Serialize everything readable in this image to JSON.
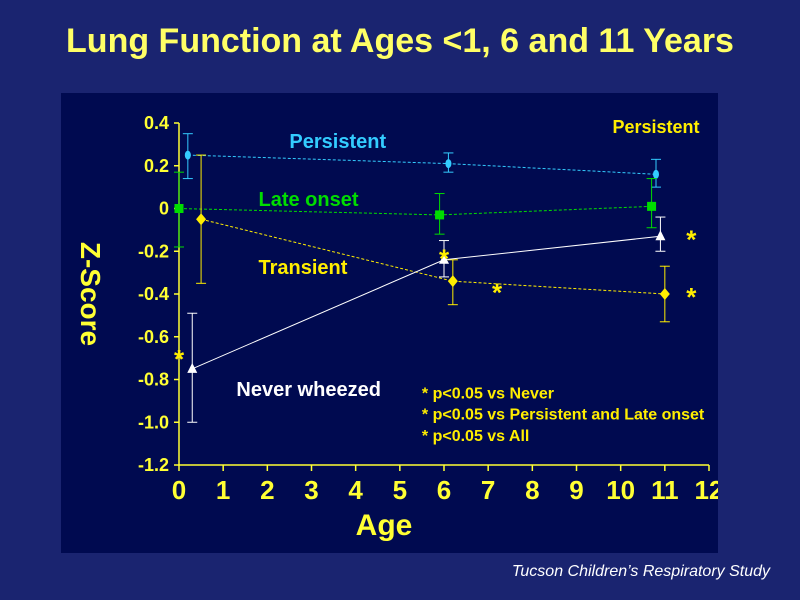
{
  "title": "Lung Function at Ages <1, 6 and 11 Years",
  "footer": "Tucson Children’s Respiratory Study",
  "chart_data": {
    "type": "line",
    "ylabel": "Z-Score",
    "xlabel": "Age",
    "xlim": [
      0,
      12
    ],
    "ylim": [
      -1.2,
      0.4
    ],
    "x_ticks": [
      0,
      1,
      2,
      3,
      4,
      5,
      6,
      7,
      8,
      9,
      10,
      11,
      12
    ],
    "x_tick_labels": [
      "0",
      "1",
      "2",
      "3",
      "4",
      "5",
      "6",
      "7",
      "8",
      "9",
      "10",
      "11",
      "12"
    ],
    "y_ticks": [
      0.4,
      0.2,
      0,
      -0.2,
      -0.4,
      -0.6,
      -0.8,
      -1.0,
      -1.2
    ],
    "y_tick_labels": [
      "0.4",
      "0.2",
      "0",
      "-0.2",
      "-0.4",
      "-0.6",
      "-0.8",
      "-1.0",
      "-1.2"
    ],
    "series": [
      {
        "name": "Persistent",
        "color": "#33ccff",
        "marker": "circle",
        "x": [
          0.2,
          6.1,
          10.8
        ],
        "y": [
          0.25,
          0.21,
          0.16
        ],
        "err_low": [
          0.14,
          0.17,
          0.1
        ],
        "err_high": [
          0.35,
          0.26,
          0.23
        ],
        "label_x": 2.5,
        "label_y": 0.32
      },
      {
        "name": "Late onset",
        "color": "#00dd00",
        "marker": "square",
        "x": [
          0,
          5.9,
          10.7
        ],
        "y": [
          0.0,
          -0.03,
          0.01
        ],
        "err_low": [
          -0.18,
          -0.12,
          -0.09
        ],
        "err_high": [
          0.17,
          0.07,
          0.14
        ],
        "label_x": 1.8,
        "label_y": 0.05
      },
      {
        "name": "Transient",
        "color": "#ffee00",
        "marker": "diamond",
        "x": [
          0.5,
          6.2,
          11.0
        ],
        "y": [
          -0.05,
          -0.34,
          -0.4
        ],
        "err_low": [
          -0.35,
          -0.45,
          -0.53
        ],
        "err_high": [
          0.25,
          -0.24,
          -0.27
        ],
        "label_x": 1.8,
        "label_y": -0.27
      },
      {
        "name": "Never wheezed",
        "color": "#ffffff",
        "marker": "triangle",
        "x": [
          0.3,
          6.0,
          10.9
        ],
        "y": [
          -0.75,
          -0.24,
          -0.13
        ],
        "err_low": [
          -1.0,
          -0.32,
          -0.2
        ],
        "err_high": [
          -0.49,
          -0.15,
          -0.04
        ],
        "label_x": 1.3,
        "label_y": -0.84
      }
    ],
    "significance": [
      {
        "text": "*",
        "x": 0.0,
        "y": -0.69,
        "color": "#ffee00"
      },
      {
        "text": "*",
        "x": 6.0,
        "y": -0.22,
        "color": "#ffee00"
      },
      {
        "text": "*",
        "x": 7.2,
        "y": -0.38,
        "color": "#ffee00"
      },
      {
        "text": "*",
        "x": 11.6,
        "y": -0.13,
        "color": "#ffee00"
      },
      {
        "text": "*",
        "x": 11.6,
        "y": -0.4,
        "color": "#ffee00"
      }
    ],
    "legend_notes": [
      {
        "text": "* p<0.05 vs Never",
        "color": "#ffee00",
        "x": 5.5,
        "y": -0.86
      },
      {
        "text": "* p<0.05 vs Persistent and Late onset",
        "color": "#ffee00",
        "x": 5.5,
        "y": -0.96
      },
      {
        "text": "* p<0.05 vs All",
        "color": "#ffee00",
        "x": 5.5,
        "y": -1.06
      }
    ],
    "corner_label": {
      "text": "Persistent",
      "x": 10.8,
      "y": 0.39,
      "color": "#ffee00"
    }
  }
}
